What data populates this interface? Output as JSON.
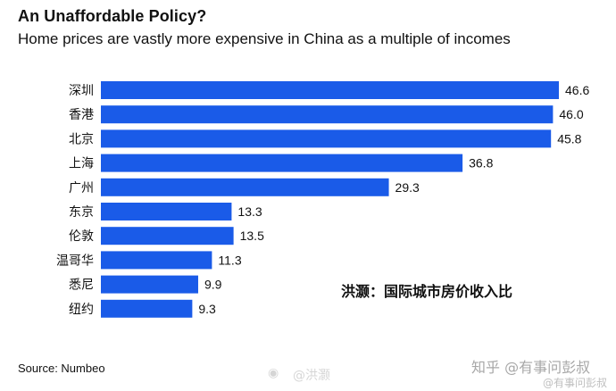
{
  "title": "An Unaffordable Policy?",
  "subtitle": "Home prices are vastly more expensive in China as a multiple of incomes",
  "source": "Source: Numbeo",
  "annotation": "洪灏：国际城市房价收入比",
  "watermarks": {
    "zhihu": "知乎 @有事问彭叔",
    "bottom": "@有事问彭叔",
    "weibo_icon": "weibo-icon",
    "weibo_handle": "@洪灏"
  },
  "colors": {
    "bar": "#1a5be8",
    "text": "#111111"
  },
  "chart_data": {
    "type": "bar",
    "orientation": "horizontal",
    "categories": [
      "深圳",
      "香港",
      "北京",
      "上海",
      "广州",
      "东京",
      "伦敦",
      "温哥华",
      "悉尼",
      "纽约"
    ],
    "values": [
      46.6,
      46.0,
      45.8,
      36.8,
      29.3,
      13.3,
      13.5,
      11.3,
      9.9,
      9.3
    ],
    "value_labels": [
      "46.6",
      "46.0",
      "45.8",
      "36.8",
      "29.3",
      "13.3",
      "13.5",
      "11.3",
      "9.9",
      "9.3"
    ],
    "xlim": [
      0,
      50
    ],
    "grid": false,
    "legend": "none"
  }
}
